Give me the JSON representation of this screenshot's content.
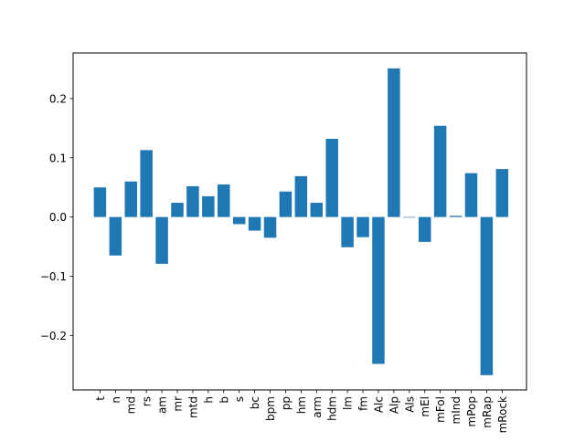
{
  "chart_data": {
    "type": "bar",
    "title": "",
    "xlabel": "",
    "ylabel": "",
    "categories": [
      "t",
      "n",
      "md",
      "rs",
      "am",
      "mr",
      "mtd",
      "h",
      "b",
      "s",
      "bc",
      "bpm",
      "pp",
      "hm",
      "arm",
      "hdm",
      "lm",
      "fm",
      "Alc",
      "Alp",
      "Als",
      "mEl",
      "mFol",
      "mInd",
      "mPop",
      "mRap",
      "mRock"
    ],
    "values": [
      0.05,
      -0.065,
      0.06,
      0.113,
      -0.079,
      0.024,
      0.052,
      0.035,
      0.055,
      -0.012,
      -0.023,
      -0.035,
      0.043,
      0.069,
      0.024,
      0.132,
      -0.051,
      -0.034,
      -0.248,
      0.251,
      0.0,
      -0.042,
      0.154,
      0.002,
      0.074,
      -0.267,
      0.081
    ],
    "ylim": [
      -0.292,
      0.277
    ],
    "yticks": [
      -0.2,
      -0.1,
      0.0,
      0.1,
      0.2
    ],
    "ytick_labels": [
      "−0.2",
      "−0.1",
      "0.0",
      "0.1",
      "0.2"
    ],
    "bar_color": "#1f77b4",
    "grid": false,
    "legend": false
  }
}
